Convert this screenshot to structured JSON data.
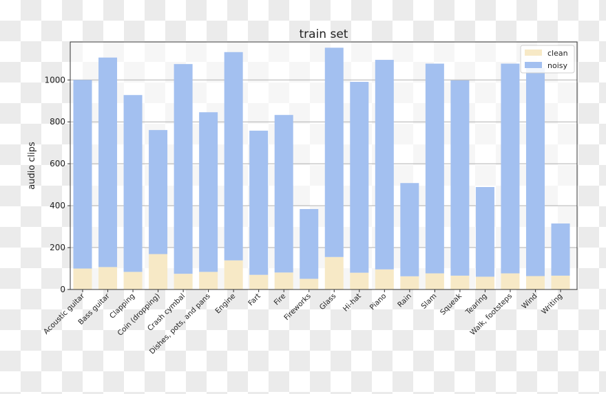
{
  "chart_data": {
    "type": "bar",
    "stacked": true,
    "title": "train set",
    "xlabel": "",
    "ylabel": "audio clips",
    "ylim": [
      0,
      1180
    ],
    "yticks": [
      0,
      200,
      400,
      600,
      800,
      1000
    ],
    "grid": "y",
    "legend_position": "upper right",
    "categories": [
      "Acoustic guitar",
      "Bass guitar",
      "Clapping",
      "Coin (dropping)",
      "Crash cymbal",
      "Dishes, pots, and pans",
      "Engine",
      "Fart",
      "Fire",
      "Fireworks",
      "Glass",
      "Hi-hat",
      "Piano",
      "Rain",
      "Slam",
      "Squeak",
      "Tearing",
      "Walk, footsteps",
      "Wind",
      "Writing"
    ],
    "series": [
      {
        "name": "clean",
        "color": "#f7e9c6",
        "values": [
          100,
          107,
          84,
          169,
          75,
          84,
          139,
          70,
          81,
          51,
          155,
          80,
          96,
          63,
          77,
          66,
          61,
          77,
          64,
          66
        ]
      },
      {
        "name": "noisy",
        "color": "#a3c0f0",
        "values": [
          900,
          1000,
          844,
          592,
          1001,
          762,
          994,
          688,
          752,
          333,
          999,
          911,
          1000,
          445,
          1001,
          932,
          428,
          1001,
          993,
          249
        ]
      }
    ],
    "totals": [
      1000,
      1107,
      928,
      761,
      1076,
      846,
      1133,
      758,
      833,
      384,
      1154,
      991,
      1096,
      508,
      1078,
      998,
      489,
      1078,
      1057,
      315
    ]
  }
}
